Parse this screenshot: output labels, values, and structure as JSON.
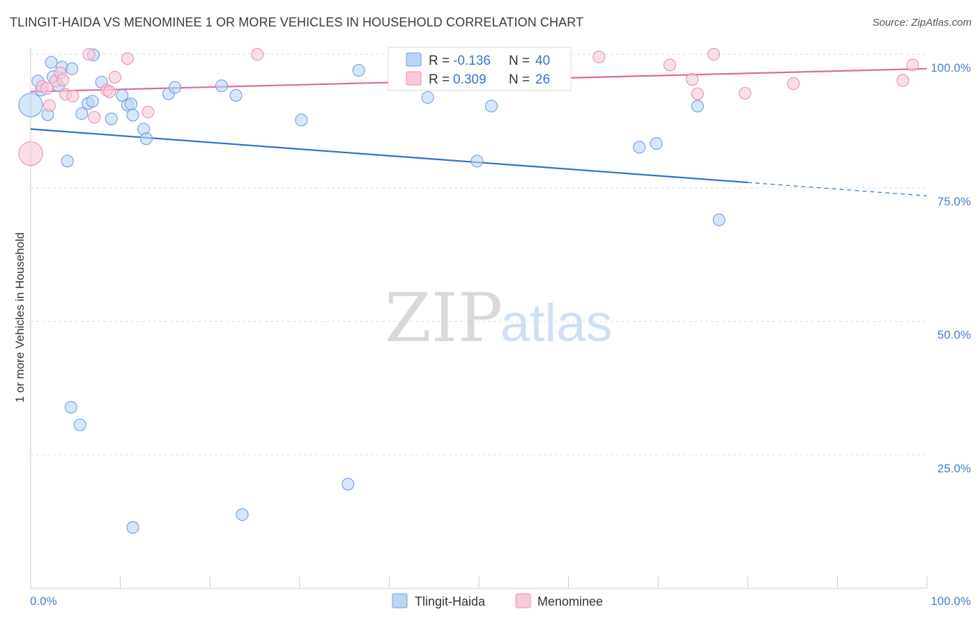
{
  "header": {
    "title": "TLINGIT-HAIDA VS MENOMINEE 1 OR MORE VEHICLES IN HOUSEHOLD CORRELATION CHART",
    "source": "Source: ZipAtlas.com"
  },
  "watermark": {
    "zip": "ZIP",
    "atlas": "atlas"
  },
  "legend": {
    "r_label": "R =",
    "n_label": "N =",
    "rows": [
      {
        "r": "-0.136",
        "n": "40"
      },
      {
        "r": "0.309",
        "n": "26"
      }
    ]
  },
  "colors": {
    "blue_fill": "#bcd5f5",
    "blue_stroke": "#6f9fe0",
    "blue_line": "#2f6fcf",
    "pink_fill": "#f8c9d8",
    "pink_stroke": "#ea8fae",
    "pink_line": "#e06a93",
    "grid": "#dedede",
    "axis": "#cccccc"
  },
  "chart_data": {
    "type": "scatter",
    "title": "TLINGIT-HAIDA VS MENOMINEE 1 OR MORE VEHICLES IN HOUSEHOLD CORRELATION CHART",
    "xlabel": "",
    "ylabel": "1 or more Vehicles in Household",
    "xlim": [
      0,
      100
    ],
    "ylim": [
      0,
      100
    ],
    "x_tick_labels": [
      "0.0%",
      "100.0%"
    ],
    "y_ticks": [
      25,
      50,
      75,
      100
    ],
    "y_tick_labels": [
      "25.0%",
      "50.0%",
      "75.0%",
      "100.0%"
    ],
    "grid": true,
    "series": [
      {
        "name": "Tlingit-Haida",
        "r": -0.136,
        "n": 40,
        "trend": {
          "x0": 0,
          "y0": 86.0,
          "x1": 80,
          "y1": 76.0,
          "dash_to": 100,
          "dash_y": 73.5
        },
        "points": [
          [
            0,
            90.5,
            2.2
          ],
          [
            0.8,
            95.0,
            1
          ],
          [
            1.2,
            93.3,
            1
          ],
          [
            1.9,
            88.7,
            1
          ],
          [
            2.3,
            98.5,
            1
          ],
          [
            2.5,
            95.8,
            1
          ],
          [
            3.1,
            94.1,
            1
          ],
          [
            3.5,
            97.6,
            1
          ],
          [
            4.1,
            80.0,
            1
          ],
          [
            4.6,
            97.3,
            1
          ],
          [
            5.7,
            88.9,
            1
          ],
          [
            6.4,
            90.8,
            1
          ],
          [
            6.9,
            91.2,
            1
          ],
          [
            7.0,
            99.9,
            1
          ],
          [
            7.9,
            94.8,
            1
          ],
          [
            9.0,
            87.9,
            1
          ],
          [
            10.2,
            92.3,
            1
          ],
          [
            10.8,
            90.5,
            1
          ],
          [
            11.2,
            90.7,
            1
          ],
          [
            11.4,
            88.6,
            1
          ],
          [
            12.6,
            86.0,
            1
          ],
          [
            12.9,
            84.2,
            1
          ],
          [
            15.4,
            92.6,
            1
          ],
          [
            16.1,
            93.8,
            1
          ],
          [
            21.3,
            94.1,
            1
          ],
          [
            22.9,
            92.3,
            1
          ],
          [
            30.2,
            87.7,
            1
          ],
          [
            36.6,
            97.0,
            1
          ],
          [
            44.3,
            91.9,
            1
          ],
          [
            49.8,
            80.0,
            1
          ],
          [
            51.4,
            90.3,
            1
          ],
          [
            67.9,
            82.6,
            1
          ],
          [
            69.8,
            83.3,
            1
          ],
          [
            74.4,
            90.3,
            1
          ],
          [
            76.8,
            69.0,
            1
          ],
          [
            4.5,
            33.9,
            1
          ],
          [
            5.5,
            30.6,
            1
          ],
          [
            11.4,
            11.4,
            0
          ],
          [
            23.6,
            13.8,
            1
          ],
          [
            35.4,
            19.5,
            1
          ]
        ]
      },
      {
        "name": "Menominee",
        "r": 0.309,
        "n": 26,
        "trend": {
          "x0": 0,
          "y0": 93.0,
          "x1": 100,
          "y1": 97.3
        },
        "points": [
          [
            0,
            81.4,
            2.2
          ],
          [
            1.3,
            94.0,
            1
          ],
          [
            1.8,
            93.6,
            1
          ],
          [
            2.1,
            90.4,
            1
          ],
          [
            2.8,
            95.0,
            1
          ],
          [
            3.3,
            96.5,
            1
          ],
          [
            3.6,
            95.2,
            1
          ],
          [
            3.9,
            92.5,
            1
          ],
          [
            4.7,
            92.2,
            1
          ],
          [
            6.5,
            100.0,
            1
          ],
          [
            7.1,
            88.2,
            1
          ],
          [
            8.5,
            93.3,
            1
          ],
          [
            8.8,
            93.0,
            1
          ],
          [
            9.4,
            95.7,
            1
          ],
          [
            10.8,
            99.2,
            1
          ],
          [
            13.1,
            89.2,
            1
          ],
          [
            25.3,
            100.0,
            1
          ],
          [
            63.4,
            99.5,
            1
          ],
          [
            71.3,
            98.0,
            1
          ],
          [
            74.4,
            92.6,
            1
          ],
          [
            73.8,
            95.3,
            1
          ],
          [
            76.2,
            100.0,
            1
          ],
          [
            79.7,
            92.7,
            1
          ],
          [
            85.1,
            94.5,
            1
          ],
          [
            97.3,
            95.1,
            1
          ],
          [
            98.4,
            98.0,
            1
          ]
        ]
      }
    ]
  }
}
